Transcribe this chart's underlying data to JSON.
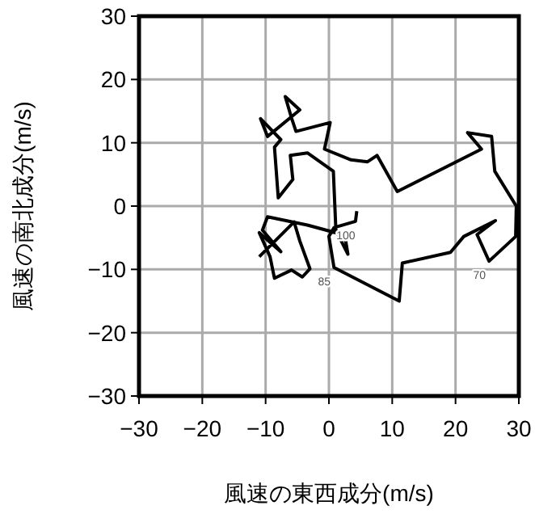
{
  "chart_data": {
    "type": "line",
    "xlabel": "風速の東西成分(m/s)",
    "ylabel": "風速の南北成分(m/s)",
    "xlim": [
      -30,
      30
    ],
    "ylim": [
      -30,
      30
    ],
    "xticks": [
      -30,
      -20,
      -10,
      0,
      10,
      20,
      30
    ],
    "yticks": [
      -30,
      -20,
      -10,
      0,
      10,
      20,
      30
    ],
    "grid": true,
    "series": [
      {
        "color": "#000000",
        "x": [
          4.4,
          4.2,
          0.8,
          0,
          0.8,
          11.1,
          11.6,
          19.2,
          21.3,
          26.3,
          23.4,
          25.3,
          29.5,
          29.6,
          26.2,
          25.7,
          21.9,
          24.1,
          10.8,
          7.6,
          6.1,
          3.5,
          -0.7,
          0.2,
          -5.2,
          -5.9,
          -6.9,
          -4.6,
          -9.7,
          -10.8,
          -7.6,
          -8.6,
          -8.0,
          -5.7,
          -6.1,
          -3.4,
          0.7,
          1.1,
          3.0,
          2.5,
          -3.4,
          -9.7,
          -10.5,
          -7.6,
          -11.0,
          -9.3,
          -8.6,
          -5.9,
          -4.2,
          -3.0,
          -4.6,
          -5.5,
          -11.0
        ],
        "values": [
          -0.8,
          -2.4,
          -3.4,
          -4.8,
          -9.7,
          -15.0,
          -9.0,
          -7.3,
          -4.8,
          -2.3,
          -4.5,
          -8.7,
          -4.8,
          0,
          5.5,
          11.0,
          11.6,
          9.0,
          2.3,
          8.0,
          7.0,
          7.3,
          9.0,
          13.2,
          11.8,
          13.9,
          17.3,
          15.2,
          11.0,
          13.8,
          10.5,
          9.3,
          1.3,
          4.2,
          8.0,
          8.4,
          5.5,
          -3.8,
          -7.6,
          -4.6,
          -3.0,
          -1.7,
          -3.8,
          -7.2,
          -4.2,
          -8.0,
          -11.4,
          -10.1,
          -11.2,
          -9.9,
          -5.5,
          -2.5,
          -8.0
        ]
      }
    ],
    "annotations": [
      {
        "text": "70",
        "x": 25.3,
        "y": -8.7
      },
      {
        "text": "85",
        "x": 0.8,
        "y": -9.7
      },
      {
        "text": "100",
        "x": 4.2,
        "y": -2.4
      }
    ]
  }
}
